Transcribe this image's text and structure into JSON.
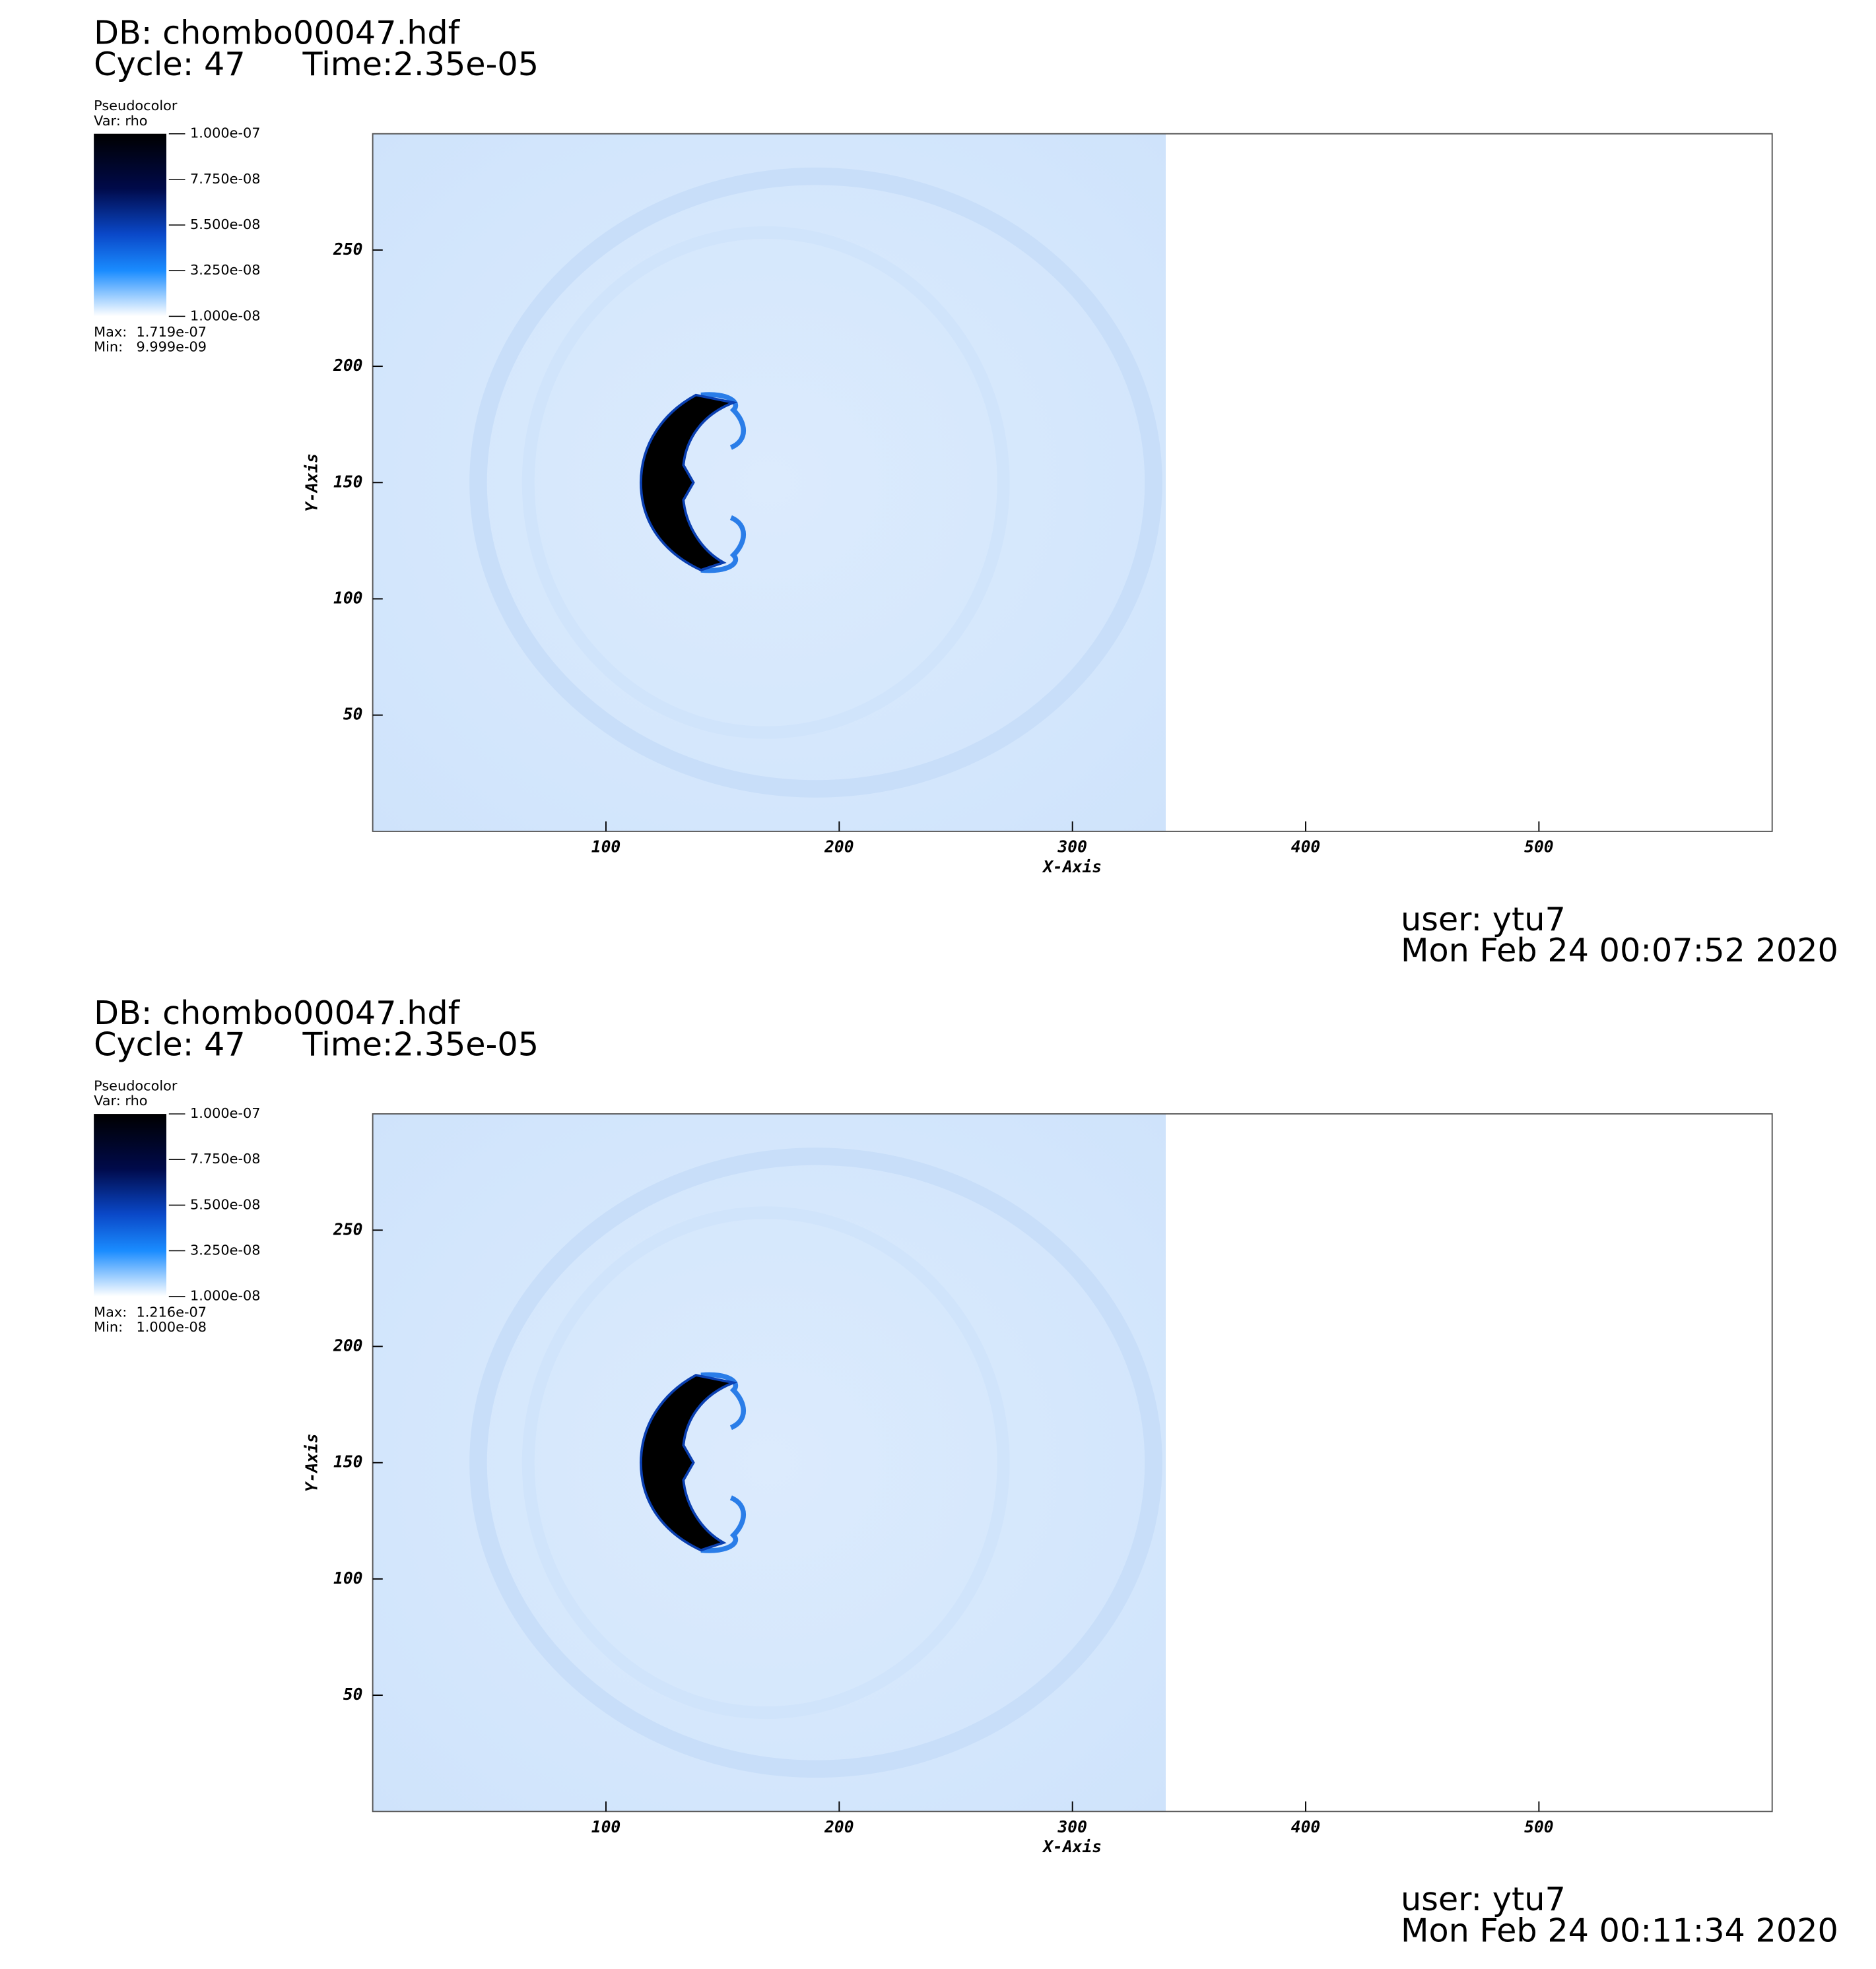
{
  "chart_data": [
    {
      "type": "pseudocolor",
      "db": "DB: chombo00047.hdf",
      "cycle": "Cycle: 47",
      "time": "Time:2.35e-05",
      "legend_title": "Pseudocolor",
      "legend_var": "Var: rho",
      "colorbar_lim": [
        1e-08,
        1e-07
      ],
      "colorbar_ticks": [
        {
          "value": 1e-07,
          "label": "1.000e-07"
        },
        {
          "value": 7.75e-08,
          "label": "7.750e-08"
        },
        {
          "value": 5.5e-08,
          "label": "5.500e-08"
        },
        {
          "value": 3.25e-08,
          "label": "3.250e-08"
        },
        {
          "value": 1e-08,
          "label": "1.000e-08"
        }
      ],
      "stats": [
        {
          "name": "Max:",
          "value": 1.719e-07,
          "label": "1.719e-07"
        },
        {
          "name": "Min:",
          "value": 9.999e-09,
          "label": "9.999e-09"
        }
      ],
      "xlabel": "X-Axis",
      "ylabel": "Y-Axis",
      "xlim": [
        0,
        600
      ],
      "ylim": [
        0,
        300
      ],
      "xticks": [
        100,
        200,
        300,
        400,
        500
      ],
      "yticks": [
        50,
        100,
        150,
        200,
        250
      ],
      "field_xlim": [
        0,
        340
      ],
      "user": "user: ytu7",
      "date": "Mon Feb 24 00:07:52 2020"
    },
    {
      "type": "pseudocolor",
      "db": "DB: chombo00047.hdf",
      "cycle": "Cycle: 47",
      "time": "Time:2.35e-05",
      "legend_title": "Pseudocolor",
      "legend_var": "Var: rho",
      "colorbar_lim": [
        1e-08,
        1e-07
      ],
      "colorbar_ticks": [
        {
          "value": 1e-07,
          "label": "1.000e-07"
        },
        {
          "value": 7.75e-08,
          "label": "7.750e-08"
        },
        {
          "value": 5.5e-08,
          "label": "5.500e-08"
        },
        {
          "value": 3.25e-08,
          "label": "3.250e-08"
        },
        {
          "value": 1e-08,
          "label": "1.000e-08"
        }
      ],
      "stats": [
        {
          "name": "Max:",
          "value": 1.216e-07,
          "label": "1.216e-07"
        },
        {
          "name": "Min:",
          "value": 1e-08,
          "label": "1.000e-08"
        }
      ],
      "xlabel": "X-Axis",
      "ylabel": "Y-Axis",
      "xlim": [
        0,
        600
      ],
      "ylim": [
        0,
        300
      ],
      "xticks": [
        100,
        200,
        300,
        400,
        500
      ],
      "yticks": [
        50,
        100,
        150,
        200,
        250
      ],
      "field_xlim": [
        0,
        340
      ],
      "user": "user: ytu7",
      "date": "Mon Feb 24 00:11:34 2020"
    }
  ]
}
